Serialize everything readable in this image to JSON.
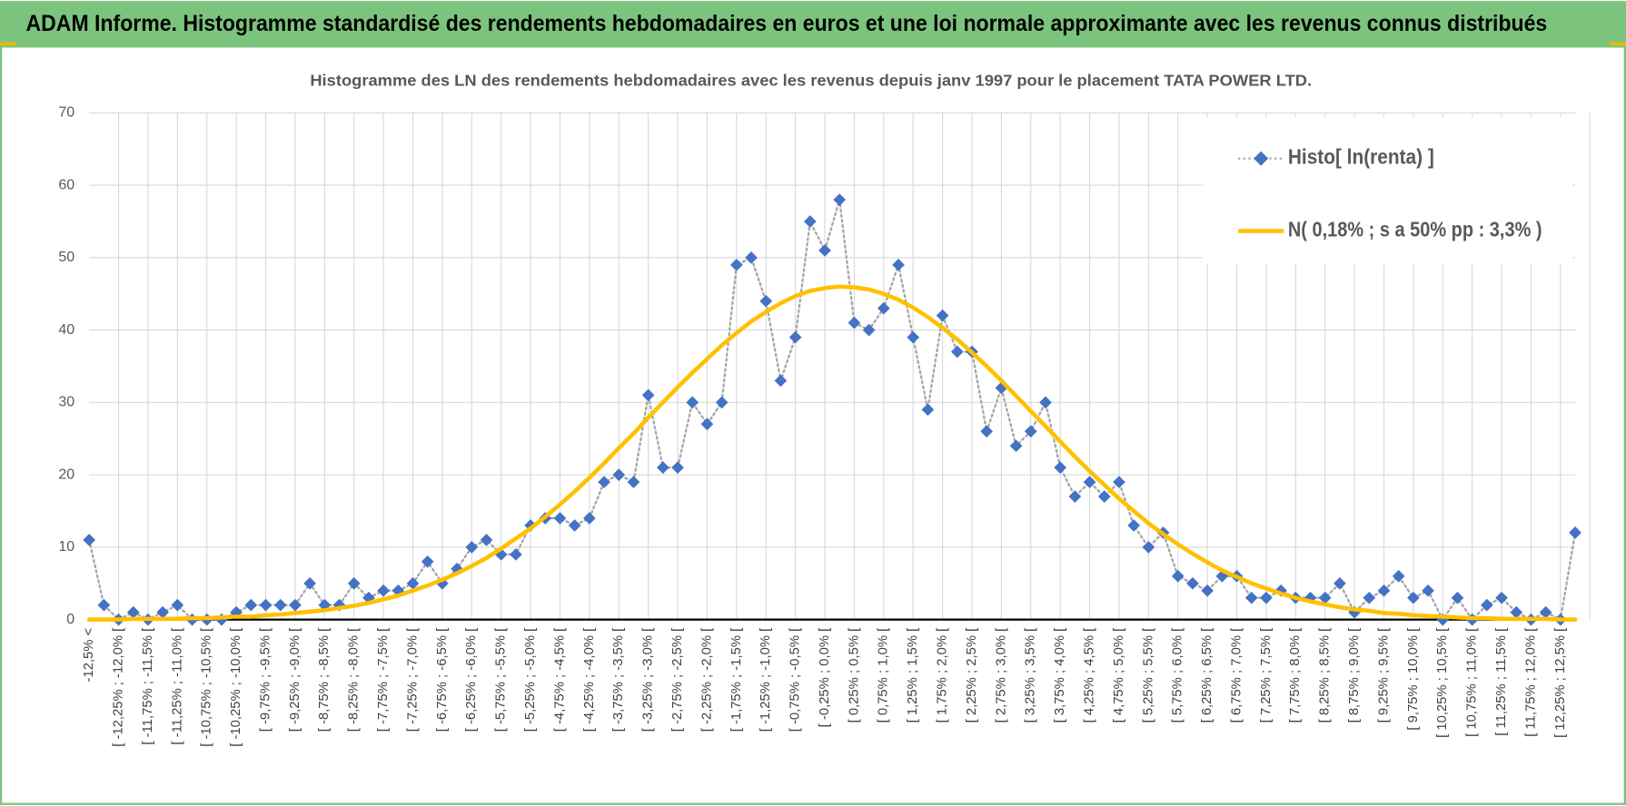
{
  "chart_data": {
    "type": "line",
    "title": "ADAM Informe. Histogramme standardisé des rendements hebdomadaires en euros et une loi normale approximante avec les revenus connus distribués",
    "subtitle": "Histogramme des LN des rendements hebdomadaires avec les revenus depuis janv 1997 pour le placement TATA POWER LTD.",
    "categories": [
      "-12,5% <",
      null,
      "[ -12,25% ; -12,0% [",
      null,
      "[ -11,75% ; -11,5% [",
      null,
      "[ -11,25% ; -11,0% [",
      null,
      "[ -10,75% ; -10,5% [",
      null,
      "[ -10,25% ; -10,0% [",
      null,
      "[ -9,75% ; -9,5% [",
      null,
      "[ -9,25% ; -9,0% [",
      null,
      "[ -8,75% ; -8,5% [",
      null,
      "[ -8,25% ; -8,0% [",
      null,
      "[ -7,75% ; -7,5% [",
      null,
      "[ -7,25% ; -7,0% [",
      null,
      "[ -6,75% ; -6,5% [",
      null,
      "[ -6,25% ; -6,0% [",
      null,
      "[ -5,75% ; -5,5% [",
      null,
      "[ -5,25% ; -5,0% [",
      null,
      "[ -4,75% ; -4,5% [",
      null,
      "[ -4,25% ; -4,0% [",
      null,
      "[ -3,75% ; -3,5% [",
      null,
      "[ -3,25% ; -3,0% [",
      null,
      "[ -2,75% ; -2,5% [",
      null,
      "[ -2,25% ; -2,0% [",
      null,
      "[ -1,75% ; -1,5% [",
      null,
      "[ -1,25% ; -1,0% [",
      null,
      "[ -0,75% ; -0,5% [",
      null,
      "[ -0,25% ; 0,0% [",
      null,
      "[ 0,25% ; 0,5% [",
      null,
      "[ 0,75% ; 1,0% [",
      null,
      "[ 1,25% ; 1,5% [",
      null,
      "[ 1,75% ; 2,0% [",
      null,
      "[ 2,25% ; 2,5% [",
      null,
      "[ 2,75% ; 3,0% [",
      null,
      "[ 3,25% ; 3,5% [",
      null,
      "[ 3,75% ; 4,0% [",
      null,
      "[ 4,25% ; 4,5% [",
      null,
      "[ 4,75% ; 5,0% [",
      null,
      "[ 5,25% ; 5,5% [",
      null,
      "[ 5,75% ; 6,0% [",
      null,
      "[ 6,25% ; 6,5% [",
      null,
      "[ 6,75% ; 7,0% [",
      null,
      "[ 7,25% ; 7,5% [",
      null,
      "[ 7,75% ; 8,0% [",
      null,
      "[ 8,25% ; 8,5% [",
      null,
      "[ 8,75% ; 9,0% [",
      null,
      "[ 9,25% ; 9,5% [",
      null,
      "[ 9,75% ; 10,0% [",
      null,
      "[ 10,25% ; 10,5% [",
      null,
      "[ 10,75% ; 11,0% [",
      null,
      "[ 11,25% ; 11,5% [",
      null,
      "[ 11,75% ; 12,0% [",
      null,
      "[ 12,25% ; 12,5% [",
      null
    ],
    "series": [
      {
        "name": "Histo[ ln(renta) ]",
        "color": "#4472c4",
        "line_color": "#a5a5a5",
        "marker": "diamond",
        "values": [
          11,
          2,
          0,
          1,
          0,
          1,
          2,
          0,
          0,
          0,
          1,
          2,
          2,
          2,
          2,
          5,
          2,
          2,
          5,
          3,
          4,
          4,
          5,
          8,
          5,
          7,
          10,
          11,
          9,
          9,
          13,
          14,
          14,
          13,
          14,
          19,
          20,
          19,
          31,
          21,
          21,
          30,
          27,
          30,
          49,
          50,
          44,
          33,
          39,
          55,
          51,
          58,
          41,
          40,
          43,
          49,
          39,
          29,
          42,
          37,
          37,
          26,
          32,
          24,
          26,
          30,
          21,
          17,
          19,
          17,
          19,
          13,
          10,
          12,
          6,
          5,
          4,
          6,
          6,
          3,
          3,
          4,
          3,
          3,
          3,
          5,
          1,
          3,
          4,
          6,
          3,
          4,
          0,
          3,
          0,
          2,
          3,
          1,
          0,
          1,
          0,
          12
        ]
      },
      {
        "name": "N( 0,18% ; s a 50% pp : 3,3% )",
        "color": "#ffc000",
        "marker": "none",
        "values": [
          0.0,
          0.0,
          0.0,
          0.1,
          0.1,
          0.1,
          0.1,
          0.2,
          0.2,
          0.3,
          0.4,
          0.4,
          0.6,
          0.7,
          0.9,
          1.1,
          1.3,
          1.6,
          1.9,
          2.3,
          2.8,
          3.3,
          4.0,
          4.7,
          5.5,
          6.4,
          7.4,
          8.5,
          9.8,
          11.2,
          12.6,
          14.2,
          15.9,
          17.7,
          19.6,
          21.6,
          23.7,
          25.7,
          27.9,
          30.0,
          32.1,
          34.1,
          36.0,
          37.9,
          39.6,
          41.2,
          42.5,
          43.7,
          44.7,
          45.4,
          45.8,
          46.0,
          45.9,
          45.6,
          45.0,
          44.2,
          43.1,
          41.8,
          40.3,
          38.7,
          36.9,
          35.0,
          33.0,
          30.9,
          28.8,
          26.7,
          24.6,
          22.5,
          20.5,
          18.6,
          16.7,
          15.0,
          13.3,
          11.8,
          10.4,
          9.1,
          7.9,
          6.8,
          5.9,
          5.0,
          4.3,
          3.6,
          3.0,
          2.5,
          2.1,
          1.7,
          1.4,
          1.2,
          0.9,
          0.8,
          0.6,
          0.5,
          0.4,
          0.3,
          0.2,
          0.2,
          0.1,
          0.1,
          0.1,
          0.1,
          0.0,
          0.0
        ]
      }
    ],
    "ylim": [
      0,
      70
    ],
    "yticks": [
      0,
      10,
      20,
      30,
      40,
      50,
      60,
      70
    ],
    "grid": true,
    "legend": "top-right"
  }
}
